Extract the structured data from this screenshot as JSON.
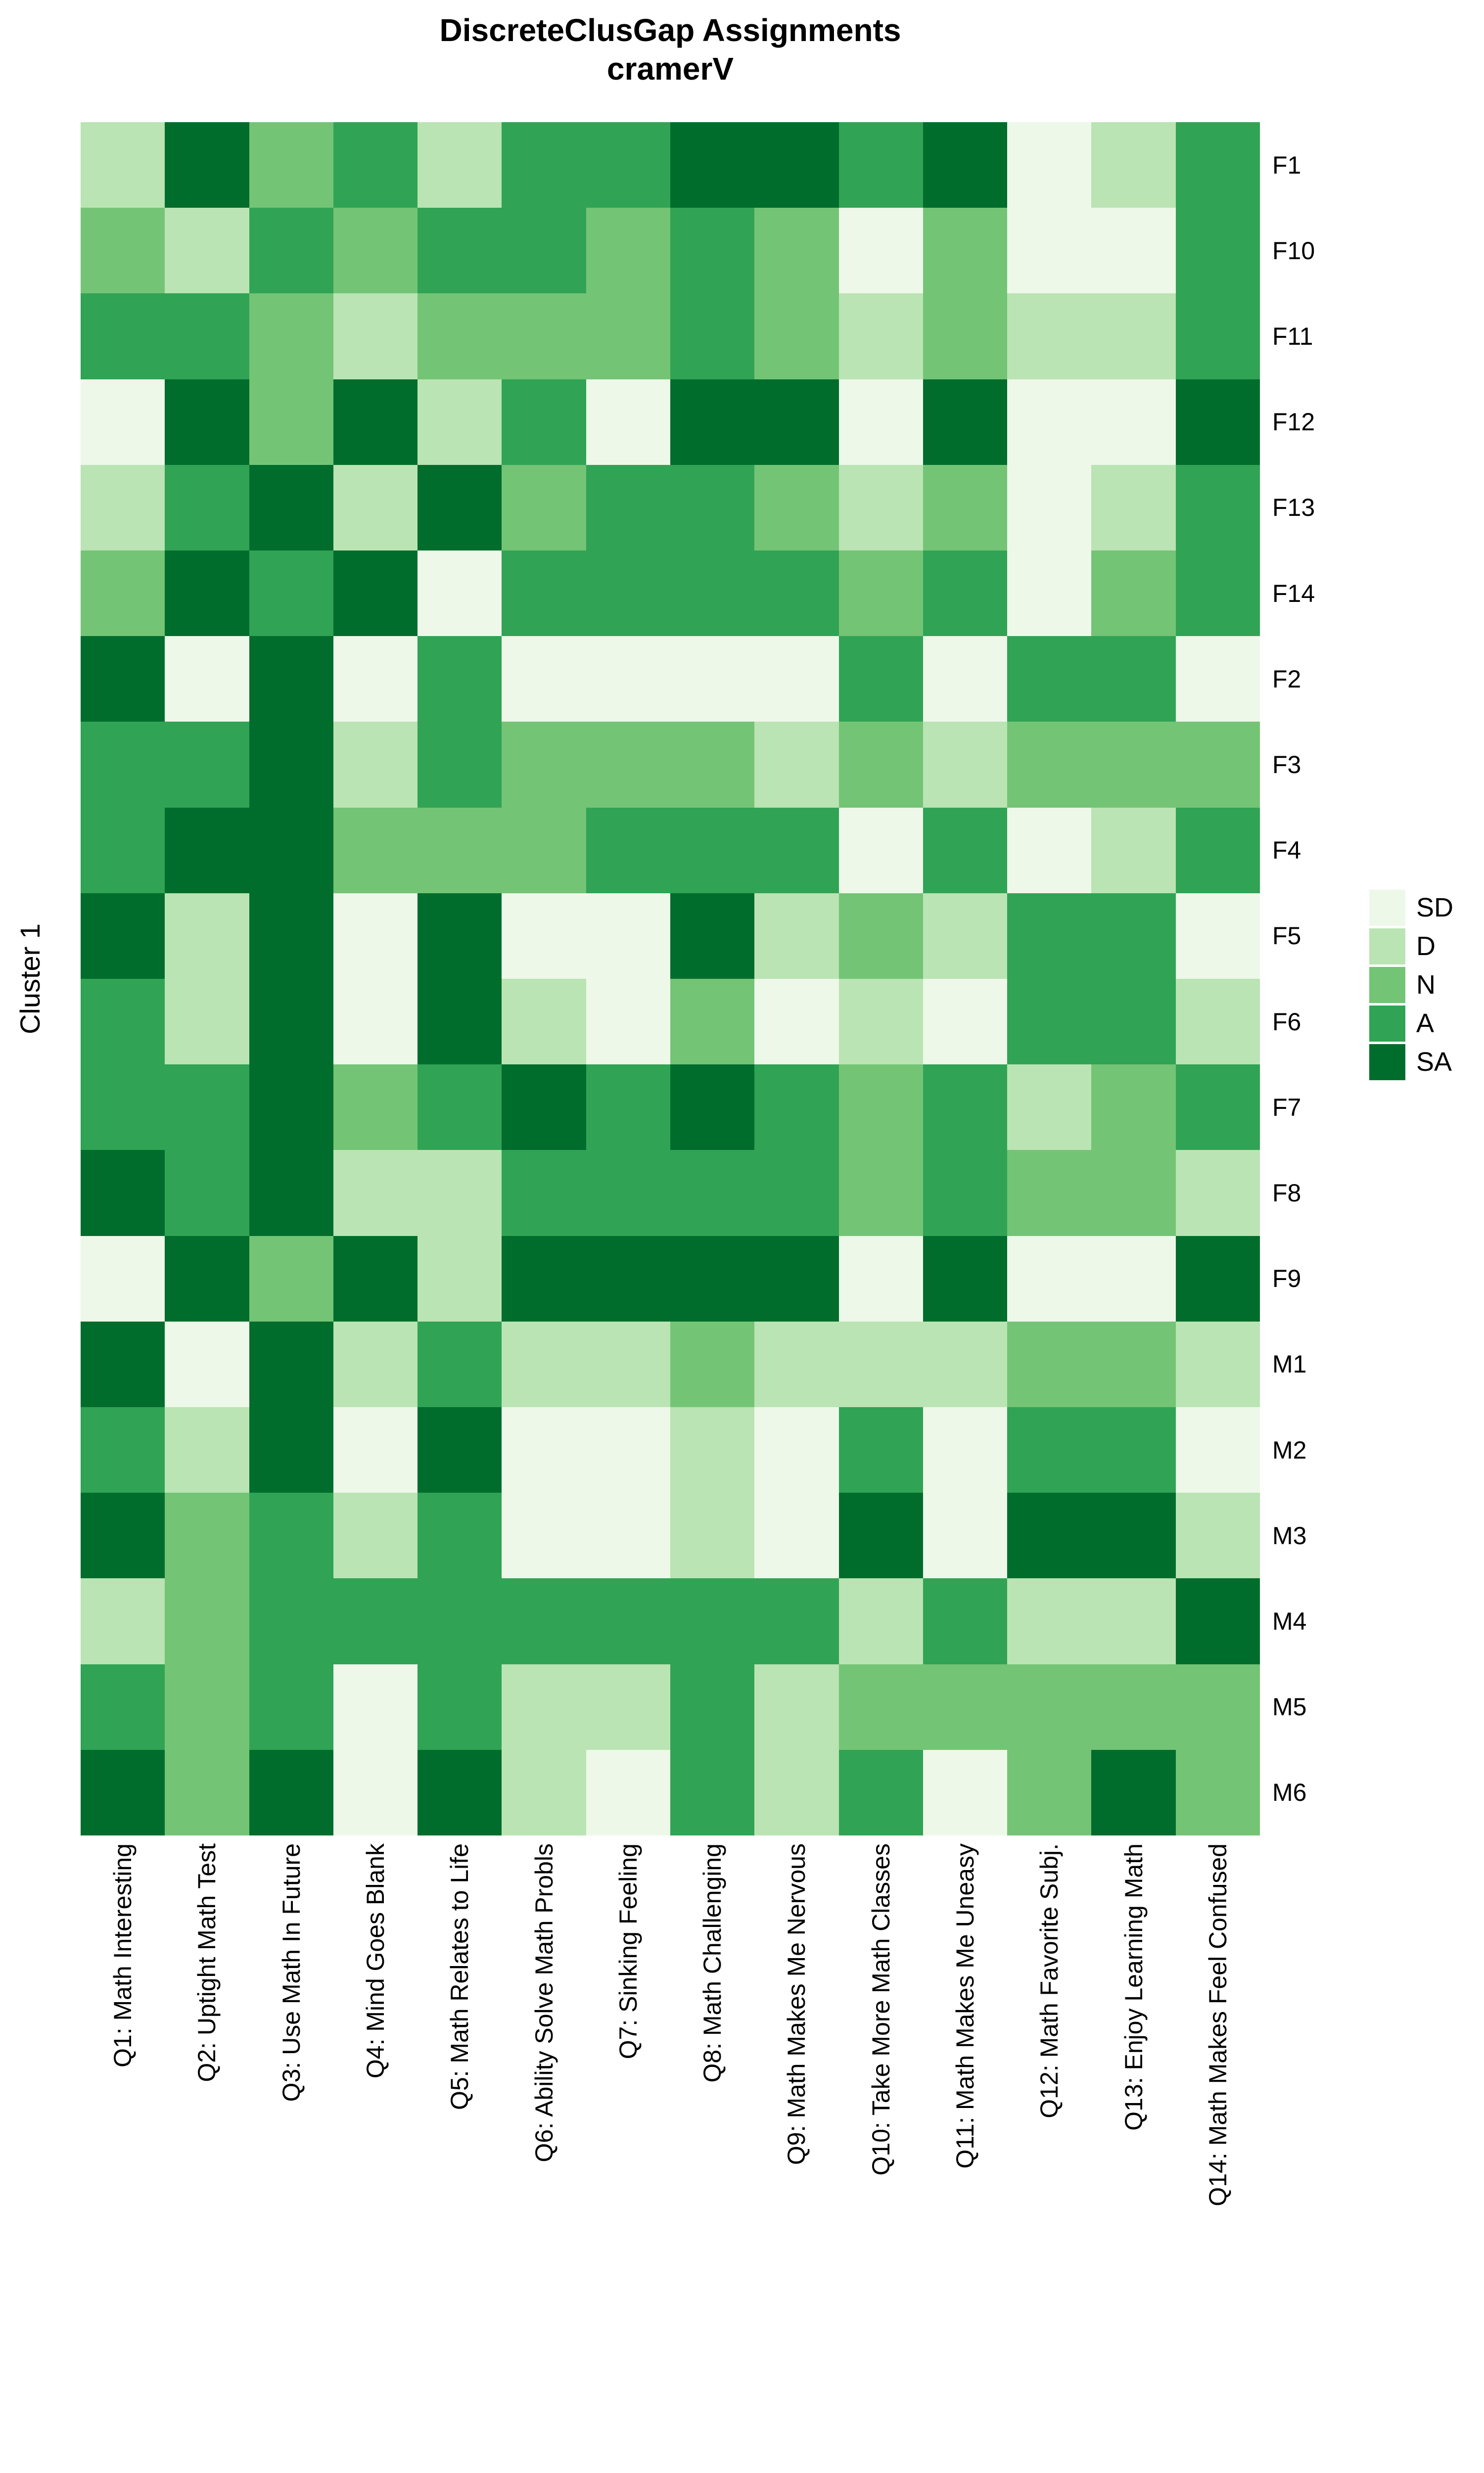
{
  "chart_data": {
    "type": "heatmap",
    "title": "DiscreteClusGap Assignments",
    "subtitle": "cramerV",
    "cluster_label": "Cluster 1",
    "legend_position": "right",
    "grid": "off",
    "levels": [
      {
        "code": "SD",
        "color": "#edf8e9"
      },
      {
        "code": "D",
        "color": "#bae4b3"
      },
      {
        "code": "N",
        "color": "#74c476"
      },
      {
        "code": "A",
        "color": "#31a354"
      },
      {
        "code": "SA",
        "color": "#006d2c"
      }
    ],
    "columns": [
      "Q1: Math Interesting",
      "Q2: Uptight Math Test",
      "Q3: Use Math In Future",
      "Q4: Mind Goes Blank",
      "Q5: Math Relates to Life",
      "Q6: Ability Solve Math Probls",
      "Q7: Sinking Feeling",
      "Q8: Math Challenging",
      "Q9: Math Makes Me Nervous",
      "Q10: Take More Math Classes",
      "Q11: Math Makes Me Uneasy",
      "Q12: Math Favorite Subj.",
      "Q13: Enjoy Learning Math",
      "Q14: Math Makes Feel Confused"
    ],
    "rows": [
      "F1",
      "F10",
      "F11",
      "F12",
      "F13",
      "F14",
      "F2",
      "F3",
      "F4",
      "F5",
      "F6",
      "F7",
      "F8",
      "F9",
      "M1",
      "M2",
      "M3",
      "M4",
      "M5",
      "M6"
    ],
    "values": [
      [
        "D",
        "SA",
        "N",
        "A",
        "D",
        "A",
        "A",
        "SA",
        "SA",
        "A",
        "SA",
        "SD",
        "D",
        "A"
      ],
      [
        "N",
        "D",
        "A",
        "N",
        "A",
        "A",
        "N",
        "A",
        "N",
        "SD",
        "N",
        "SD",
        "SD",
        "A"
      ],
      [
        "A",
        "A",
        "N",
        "D",
        "N",
        "N",
        "N",
        "A",
        "N",
        "D",
        "N",
        "D",
        "D",
        "A"
      ],
      [
        "SD",
        "SA",
        "N",
        "SA",
        "D",
        "A",
        "SD",
        "SA",
        "SA",
        "SD",
        "SA",
        "SD",
        "SD",
        "SA"
      ],
      [
        "D",
        "A",
        "SA",
        "D",
        "SA",
        "N",
        "A",
        "A",
        "N",
        "D",
        "N",
        "SD",
        "D",
        "A"
      ],
      [
        "N",
        "SA",
        "A",
        "SA",
        "SD",
        "A",
        "A",
        "A",
        "A",
        "N",
        "A",
        "SD",
        "N",
        "A"
      ],
      [
        "SA",
        "SD",
        "SA",
        "SD",
        "A",
        "SD",
        "SD",
        "SD",
        "SD",
        "A",
        "SD",
        "A",
        "A",
        "SD"
      ],
      [
        "A",
        "A",
        "SA",
        "D",
        "A",
        "N",
        "N",
        "N",
        "D",
        "N",
        "D",
        "N",
        "N",
        "N"
      ],
      [
        "A",
        "SA",
        "SA",
        "N",
        "N",
        "N",
        "A",
        "A",
        "A",
        "SD",
        "A",
        "SD",
        "D",
        "A"
      ],
      [
        "SA",
        "D",
        "SA",
        "SD",
        "SA",
        "SD",
        "SD",
        "SA",
        "D",
        "N",
        "D",
        "A",
        "A",
        "SD"
      ],
      [
        "A",
        "D",
        "SA",
        "SD",
        "SA",
        "D",
        "SD",
        "N",
        "SD",
        "D",
        "SD",
        "A",
        "A",
        "D"
      ],
      [
        "A",
        "A",
        "SA",
        "N",
        "A",
        "SA",
        "A",
        "SA",
        "A",
        "N",
        "A",
        "D",
        "N",
        "A"
      ],
      [
        "SA",
        "A",
        "SA",
        "D",
        "D",
        "A",
        "A",
        "A",
        "A",
        "N",
        "A",
        "N",
        "N",
        "D"
      ],
      [
        "SD",
        "SA",
        "N",
        "SA",
        "D",
        "SA",
        "SA",
        "SA",
        "SA",
        "SD",
        "SA",
        "SD",
        "SD",
        "SA"
      ],
      [
        "SA",
        "SD",
        "SA",
        "D",
        "A",
        "D",
        "D",
        "N",
        "D",
        "D",
        "D",
        "N",
        "N",
        "D"
      ],
      [
        "A",
        "D",
        "SA",
        "SD",
        "SA",
        "SD",
        "SD",
        "D",
        "SD",
        "A",
        "SD",
        "A",
        "A",
        "SD"
      ],
      [
        "SA",
        "N",
        "A",
        "D",
        "A",
        "SD",
        "SD",
        "D",
        "SD",
        "SA",
        "SD",
        "SA",
        "SA",
        "D"
      ],
      [
        "D",
        "N",
        "A",
        "A",
        "A",
        "A",
        "A",
        "A",
        "A",
        "D",
        "A",
        "D",
        "D",
        "SA"
      ],
      [
        "A",
        "N",
        "A",
        "SD",
        "A",
        "D",
        "D",
        "A",
        "D",
        "N",
        "N",
        "N",
        "N",
        "N"
      ],
      [
        "SA",
        "N",
        "SA",
        "SD",
        "SA",
        "D",
        "SD",
        "A",
        "D",
        "A",
        "SD",
        "N",
        "SA",
        "N"
      ]
    ]
  }
}
